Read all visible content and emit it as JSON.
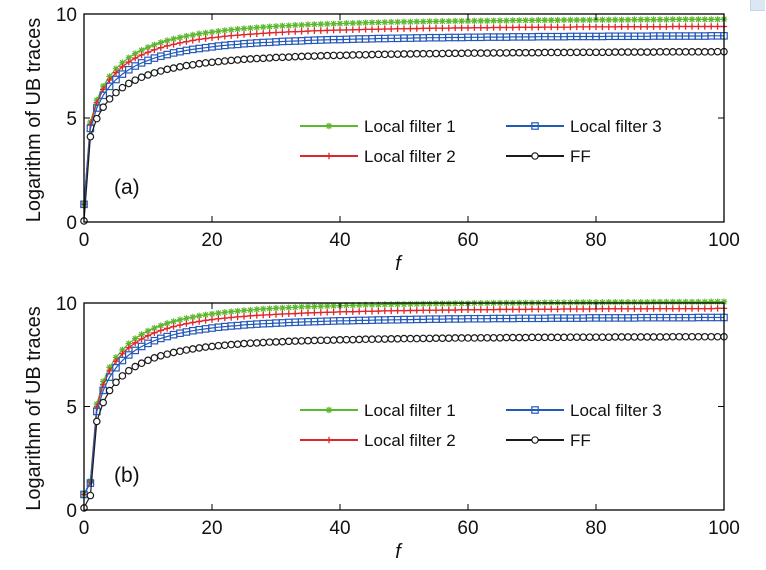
{
  "figure": {
    "background": "#ffffff",
    "frame_color": "#000000"
  },
  "chart_data": [
    {
      "type": "line",
      "panel_label": "(a)",
      "xlabel": "f",
      "ylabel": "Logarithm of UB traces",
      "xlim": [
        0,
        100
      ],
      "ylim": [
        0,
        10
      ],
      "xticks": [
        0,
        20,
        40,
        60,
        80,
        100
      ],
      "yticks": [
        0,
        5,
        10
      ],
      "grid": false,
      "legend_position": "inside-lower-right, two columns",
      "x": [
        0,
        1,
        2,
        3,
        4,
        5,
        6,
        7,
        8,
        9,
        10,
        11,
        12,
        13,
        14,
        15,
        16,
        17,
        18,
        19,
        20,
        21,
        22,
        23,
        24,
        25,
        26,
        27,
        28,
        29,
        30,
        31,
        32,
        33,
        34,
        35,
        36,
        37,
        38,
        39,
        40,
        41,
        42,
        43,
        44,
        45,
        46,
        47,
        48,
        49,
        50,
        51,
        52,
        53,
        54,
        55,
        56,
        57,
        58,
        59,
        60,
        61,
        62,
        63,
        64,
        65,
        66,
        67,
        68,
        69,
        70,
        71,
        72,
        73,
        74,
        75,
        76,
        77,
        78,
        79,
        80,
        81,
        82,
        83,
        84,
        85,
        86,
        87,
        88,
        89,
        90,
        91,
        92,
        93,
        94,
        95,
        96,
        97,
        98,
        99,
        100
      ],
      "series": [
        {
          "name": "Local filter 1",
          "color": "#5cb82e",
          "marker": "asterisk",
          "values": [
            0.85,
            4.8,
            5.86,
            6.53,
            7.0,
            7.37,
            7.66,
            7.9,
            8.1,
            8.26,
            8.4,
            8.52,
            8.63,
            8.72,
            8.8,
            8.87,
            8.94,
            8.99,
            9.05,
            9.09,
            9.13,
            9.17,
            9.21,
            9.24,
            9.27,
            9.3,
            9.32,
            9.35,
            9.37,
            9.39,
            9.41,
            9.43,
            9.44,
            9.46,
            9.47,
            9.49,
            9.5,
            9.51,
            9.52,
            9.53,
            9.54,
            9.55,
            9.56,
            9.57,
            9.58,
            9.59,
            9.59,
            9.6,
            9.61,
            9.61,
            9.62,
            9.62,
            9.63,
            9.63,
            9.64,
            9.64,
            9.65,
            9.65,
            9.66,
            9.66,
            9.66,
            9.67,
            9.67,
            9.67,
            9.68,
            9.68,
            9.68,
            9.69,
            9.69,
            9.69,
            9.69,
            9.7,
            9.7,
            9.7,
            9.7,
            9.71,
            9.71,
            9.71,
            9.71,
            9.71,
            9.72,
            9.72,
            9.72,
            9.72,
            9.72,
            9.72,
            9.73,
            9.73,
            9.73,
            9.73,
            9.73,
            9.73,
            9.74,
            9.74,
            9.74,
            9.74,
            9.74,
            9.74,
            9.74,
            9.74,
            9.75
          ]
        },
        {
          "name": "Local filter 2",
          "color": "#e0262b",
          "marker": "plus",
          "values": [
            0.85,
            4.7,
            5.73,
            6.37,
            6.83,
            7.18,
            7.46,
            7.69,
            7.88,
            8.03,
            8.16,
            8.28,
            8.38,
            8.47,
            8.54,
            8.61,
            8.67,
            8.73,
            8.78,
            8.82,
            8.86,
            8.89,
            8.93,
            8.96,
            8.98,
            9.01,
            9.03,
            9.05,
            9.07,
            9.09,
            9.11,
            9.12,
            9.14,
            9.15,
            9.16,
            9.18,
            9.19,
            9.2,
            9.21,
            9.22,
            9.23,
            9.23,
            9.24,
            9.25,
            9.26,
            9.26,
            9.27,
            9.28,
            9.28,
            9.29,
            9.29,
            9.3,
            9.3,
            9.31,
            9.31,
            9.32,
            9.32,
            9.32,
            9.33,
            9.33,
            9.33,
            9.34,
            9.34,
            9.34,
            9.35,
            9.35,
            9.35,
            9.35,
            9.36,
            9.36,
            9.36,
            9.36,
            9.37,
            9.37,
            9.37,
            9.37,
            9.37,
            9.38,
            9.38,
            9.38,
            9.38,
            9.38,
            9.38,
            9.38,
            9.39,
            9.39,
            9.39,
            9.39,
            9.39,
            9.39,
            9.39,
            9.39,
            9.4,
            9.4,
            9.4,
            9.4,
            9.4,
            9.4,
            9.4,
            9.4,
            9.4
          ]
        },
        {
          "name": "Local filter 3",
          "color": "#2458b8",
          "marker": "square",
          "values": [
            0.85,
            4.5,
            5.48,
            6.09,
            6.52,
            6.85,
            7.11,
            7.32,
            7.5,
            7.65,
            7.77,
            7.88,
            7.97,
            8.05,
            8.13,
            8.19,
            8.25,
            8.3,
            8.34,
            8.38,
            8.42,
            8.46,
            8.49,
            8.52,
            8.54,
            8.57,
            8.59,
            8.61,
            8.63,
            8.64,
            8.66,
            8.68,
            8.69,
            8.7,
            8.71,
            8.73,
            8.74,
            8.75,
            8.76,
            8.77,
            8.77,
            8.78,
            8.79,
            8.8,
            8.8,
            8.81,
            8.82,
            8.82,
            8.83,
            8.83,
            8.84,
            8.84,
            8.85,
            8.85,
            8.86,
            8.86,
            8.86,
            8.87,
            8.87,
            8.87,
            8.88,
            8.88,
            8.88,
            8.89,
            8.89,
            8.89,
            8.89,
            8.9,
            8.9,
            8.9,
            8.9,
            8.91,
            8.91,
            8.91,
            8.91,
            8.91,
            8.92,
            8.92,
            8.92,
            8.92,
            8.92,
            8.92,
            8.93,
            8.93,
            8.93,
            8.93,
            8.93,
            8.93,
            8.93,
            8.94,
            8.94,
            8.94,
            8.94,
            8.94,
            8.94,
            8.94,
            8.94,
            8.94,
            8.95,
            8.95,
            8.95
          ]
        },
        {
          "name": "FF",
          "color": "#1a1a1a",
          "marker": "circle",
          "values": [
            0.05,
            4.1,
            4.97,
            5.52,
            5.92,
            6.22,
            6.46,
            6.66,
            6.82,
            6.96,
            7.07,
            7.17,
            7.26,
            7.34,
            7.4,
            7.46,
            7.52,
            7.56,
            7.61,
            7.65,
            7.68,
            7.71,
            7.74,
            7.77,
            7.79,
            7.82,
            7.84,
            7.86,
            7.87,
            7.89,
            7.91,
            7.92,
            7.93,
            7.95,
            7.96,
            7.97,
            7.98,
            7.99,
            8.0,
            8.01,
            8.01,
            8.02,
            8.03,
            8.04,
            8.04,
            8.05,
            8.06,
            8.06,
            8.07,
            8.07,
            8.08,
            8.08,
            8.09,
            8.09,
            8.09,
            8.1,
            8.1,
            8.11,
            8.11,
            8.11,
            8.12,
            8.12,
            8.12,
            8.12,
            8.13,
            8.13,
            8.13,
            8.14,
            8.14,
            8.14,
            8.14,
            8.14,
            8.15,
            8.15,
            8.15,
            8.15,
            8.15,
            8.16,
            8.16,
            8.16,
            8.16,
            8.16,
            8.16,
            8.17,
            8.17,
            8.17,
            8.17,
            8.17,
            8.17,
            8.17,
            8.18,
            8.18,
            8.18,
            8.18,
            8.18,
            8.18,
            8.18,
            8.18,
            8.18,
            8.19,
            8.19
          ]
        }
      ]
    },
    {
      "type": "line",
      "panel_label": "(b)",
      "xlabel": "f",
      "ylabel": "Logarithm of UB traces",
      "xlim": [
        0,
        100
      ],
      "ylim": [
        0,
        10
      ],
      "xticks": [
        0,
        20,
        40,
        60,
        80,
        100
      ],
      "yticks": [
        0,
        5,
        10
      ],
      "grid": false,
      "legend_position": "inside-lower-right, two columns",
      "x": [
        0,
        1,
        2,
        3,
        4,
        5,
        6,
        7,
        8,
        9,
        10,
        11,
        12,
        13,
        14,
        15,
        16,
        17,
        18,
        19,
        20,
        21,
        22,
        23,
        24,
        25,
        26,
        27,
        28,
        29,
        30,
        31,
        32,
        33,
        34,
        35,
        36,
        37,
        38,
        39,
        40,
        41,
        42,
        43,
        44,
        45,
        46,
        47,
        48,
        49,
        50,
        51,
        52,
        53,
        54,
        55,
        56,
        57,
        58,
        59,
        60,
        61,
        62,
        63,
        64,
        65,
        66,
        67,
        68,
        69,
        70,
        71,
        72,
        73,
        74,
        75,
        76,
        77,
        78,
        79,
        80,
        81,
        82,
        83,
        84,
        85,
        86,
        87,
        88,
        89,
        90,
        91,
        92,
        93,
        94,
        95,
        96,
        97,
        98,
        99,
        100
      ],
      "series": [
        {
          "name": "Local filter 1",
          "color": "#5cb82e",
          "marker": "asterisk",
          "values": [
            0.75,
            1.4,
            5.12,
            6.21,
            6.89,
            7.37,
            7.74,
            8.04,
            8.28,
            8.48,
            8.65,
            8.79,
            8.91,
            9.02,
            9.11,
            9.19,
            9.26,
            9.32,
            9.38,
            9.43,
            9.47,
            9.51,
            9.55,
            9.58,
            9.61,
            9.64,
            9.66,
            9.69,
            9.71,
            9.73,
            9.75,
            9.76,
            9.78,
            9.79,
            9.81,
            9.82,
            9.83,
            9.84,
            9.85,
            9.86,
            9.87,
            9.88,
            9.89,
            9.9,
            9.91,
            9.91,
            9.92,
            9.93,
            9.93,
            9.94,
            9.94,
            9.95,
            9.95,
            9.96,
            9.96,
            9.97,
            9.97,
            9.97,
            9.98,
            9.98,
            9.98,
            9.99,
            9.99,
            9.99,
            10.0,
            10.0,
            10.0,
            10.0,
            10.01,
            10.01,
            10.01,
            10.01,
            10.02,
            10.02,
            10.02,
            10.02,
            10.02,
            10.03,
            10.03,
            10.03,
            10.03,
            10.03,
            10.04,
            10.04,
            10.04,
            10.04,
            10.04,
            10.04,
            10.04,
            10.05,
            10.05,
            10.05,
            10.05,
            10.05,
            10.05,
            10.05,
            10.05,
            10.05,
            10.06,
            10.06,
            10.06
          ]
        },
        {
          "name": "Local filter 2",
          "color": "#e0262b",
          "marker": "plus",
          "values": [
            0.75,
            1.35,
            4.98,
            6.05,
            6.72,
            7.19,
            7.55,
            7.84,
            8.07,
            8.26,
            8.42,
            8.56,
            8.67,
            8.77,
            8.86,
            8.93,
            9.0,
            9.06,
            9.11,
            9.16,
            9.2,
            9.24,
            9.27,
            9.3,
            9.33,
            9.35,
            9.38,
            9.4,
            9.42,
            9.43,
            9.45,
            9.47,
            9.48,
            9.49,
            9.51,
            9.52,
            9.53,
            9.54,
            9.55,
            9.56,
            9.57,
            9.58,
            9.58,
            9.59,
            9.6,
            9.6,
            9.61,
            9.62,
            9.62,
            9.63,
            9.63,
            9.64,
            9.64,
            9.65,
            9.65,
            9.65,
            9.66,
            9.66,
            9.66,
            9.67,
            9.67,
            9.67,
            9.68,
            9.68,
            9.68,
            9.69,
            9.69,
            9.69,
            9.69,
            9.69,
            9.7,
            9.7,
            9.7,
            9.7,
            9.7,
            9.71,
            9.71,
            9.71,
            9.71,
            9.71,
            9.71,
            9.72,
            9.72,
            9.72,
            9.72,
            9.72,
            9.72,
            9.72,
            9.72,
            9.73,
            9.73,
            9.73,
            9.73,
            9.73,
            9.73,
            9.73,
            9.73,
            9.73,
            9.73,
            9.74,
            9.74
          ]
        },
        {
          "name": "Local filter 3",
          "color": "#2458b8",
          "marker": "square",
          "values": [
            0.75,
            1.3,
            4.76,
            5.78,
            6.42,
            6.87,
            7.22,
            7.49,
            7.71,
            7.9,
            8.05,
            8.18,
            8.29,
            8.38,
            8.47,
            8.54,
            8.6,
            8.66,
            8.71,
            8.75,
            8.79,
            8.83,
            8.86,
            8.89,
            8.91,
            8.94,
            8.96,
            8.98,
            9.0,
            9.01,
            9.03,
            9.04,
            9.06,
            9.07,
            9.08,
            9.09,
            9.1,
            9.11,
            9.12,
            9.13,
            9.14,
            9.14,
            9.15,
            9.16,
            9.16,
            9.17,
            9.18,
            9.18,
            9.19,
            9.19,
            9.2,
            9.2,
            9.21,
            9.21,
            9.22,
            9.22,
            9.22,
            9.23,
            9.23,
            9.23,
            9.24,
            9.24,
            9.24,
            9.24,
            9.25,
            9.25,
            9.25,
            9.25,
            9.26,
            9.26,
            9.26,
            9.26,
            9.26,
            9.27,
            9.27,
            9.27,
            9.27,
            9.27,
            9.27,
            9.28,
            9.28,
            9.28,
            9.28,
            9.28,
            9.28,
            9.28,
            9.28,
            9.29,
            9.29,
            9.29,
            9.29,
            9.29,
            9.29,
            9.29,
            9.29,
            9.29,
            9.3,
            9.3,
            9.3,
            9.3,
            9.3
          ]
        },
        {
          "name": "FF",
          "color": "#1a1a1a",
          "marker": "circle",
          "values": [
            0.1,
            0.7,
            4.28,
            5.19,
            5.77,
            6.17,
            6.48,
            6.73,
            6.93,
            7.09,
            7.23,
            7.35,
            7.45,
            7.53,
            7.61,
            7.67,
            7.73,
            7.78,
            7.83,
            7.87,
            7.9,
            7.94,
            7.96,
            7.99,
            8.01,
            8.04,
            8.06,
            8.07,
            8.09,
            8.11,
            8.12,
            8.13,
            8.15,
            8.16,
            8.17,
            8.18,
            8.19,
            8.2,
            8.2,
            8.21,
            8.22,
            8.23,
            8.23,
            8.24,
            8.25,
            8.25,
            8.26,
            8.26,
            8.27,
            8.27,
            8.28,
            8.28,
            8.28,
            8.29,
            8.29,
            8.3,
            8.3,
            8.3,
            8.31,
            8.31,
            8.31,
            8.31,
            8.32,
            8.32,
            8.32,
            8.32,
            8.33,
            8.33,
            8.33,
            8.33,
            8.34,
            8.34,
            8.34,
            8.34,
            8.34,
            8.34,
            8.35,
            8.35,
            8.35,
            8.35,
            8.35,
            8.35,
            8.35,
            8.36,
            8.36,
            8.36,
            8.36,
            8.36,
            8.36,
            8.36,
            8.36,
            8.36,
            8.37,
            8.37,
            8.37,
            8.37,
            8.37,
            8.37,
            8.37,
            8.37,
            8.37
          ]
        }
      ]
    }
  ]
}
